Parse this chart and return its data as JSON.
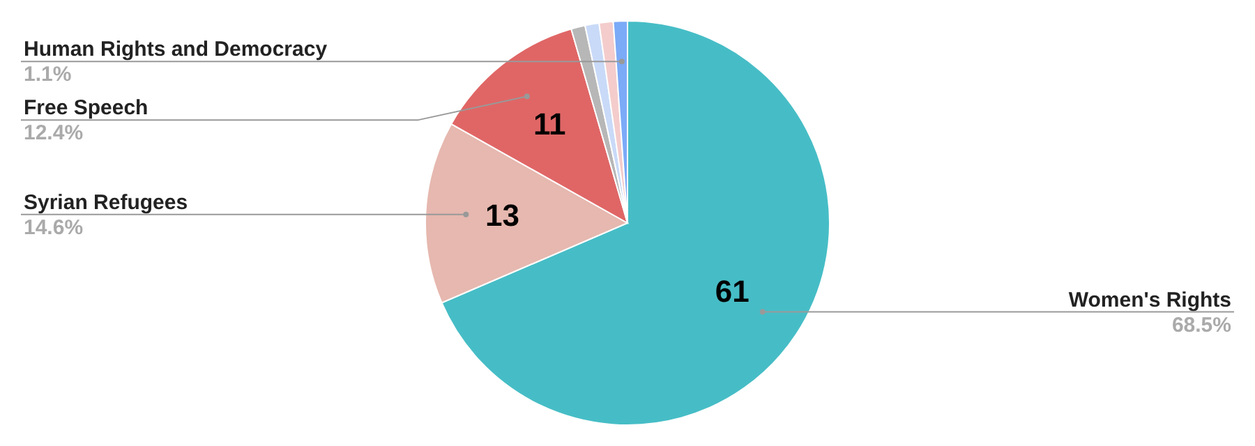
{
  "chart_data": {
    "type": "pie",
    "categories": [
      "Women's Rights",
      "Syrian Refugees",
      "Free Speech",
      null,
      null,
      null,
      "Human Rights and Democracy"
    ],
    "values": [
      61,
      13,
      11,
      1,
      1,
      1,
      1
    ],
    "value_labels": [
      "61",
      "13",
      "11",
      null,
      null,
      null,
      null
    ],
    "colors": [
      "#46bdc6",
      "#e6b8af",
      "#e06666",
      "#b7b7b7",
      "#c9daf8",
      "#f4cccc",
      "#7baaf7"
    ],
    "annotations": [
      "68.5%",
      "14.6%",
      "12.4%",
      "1.1%"
    ]
  }
}
